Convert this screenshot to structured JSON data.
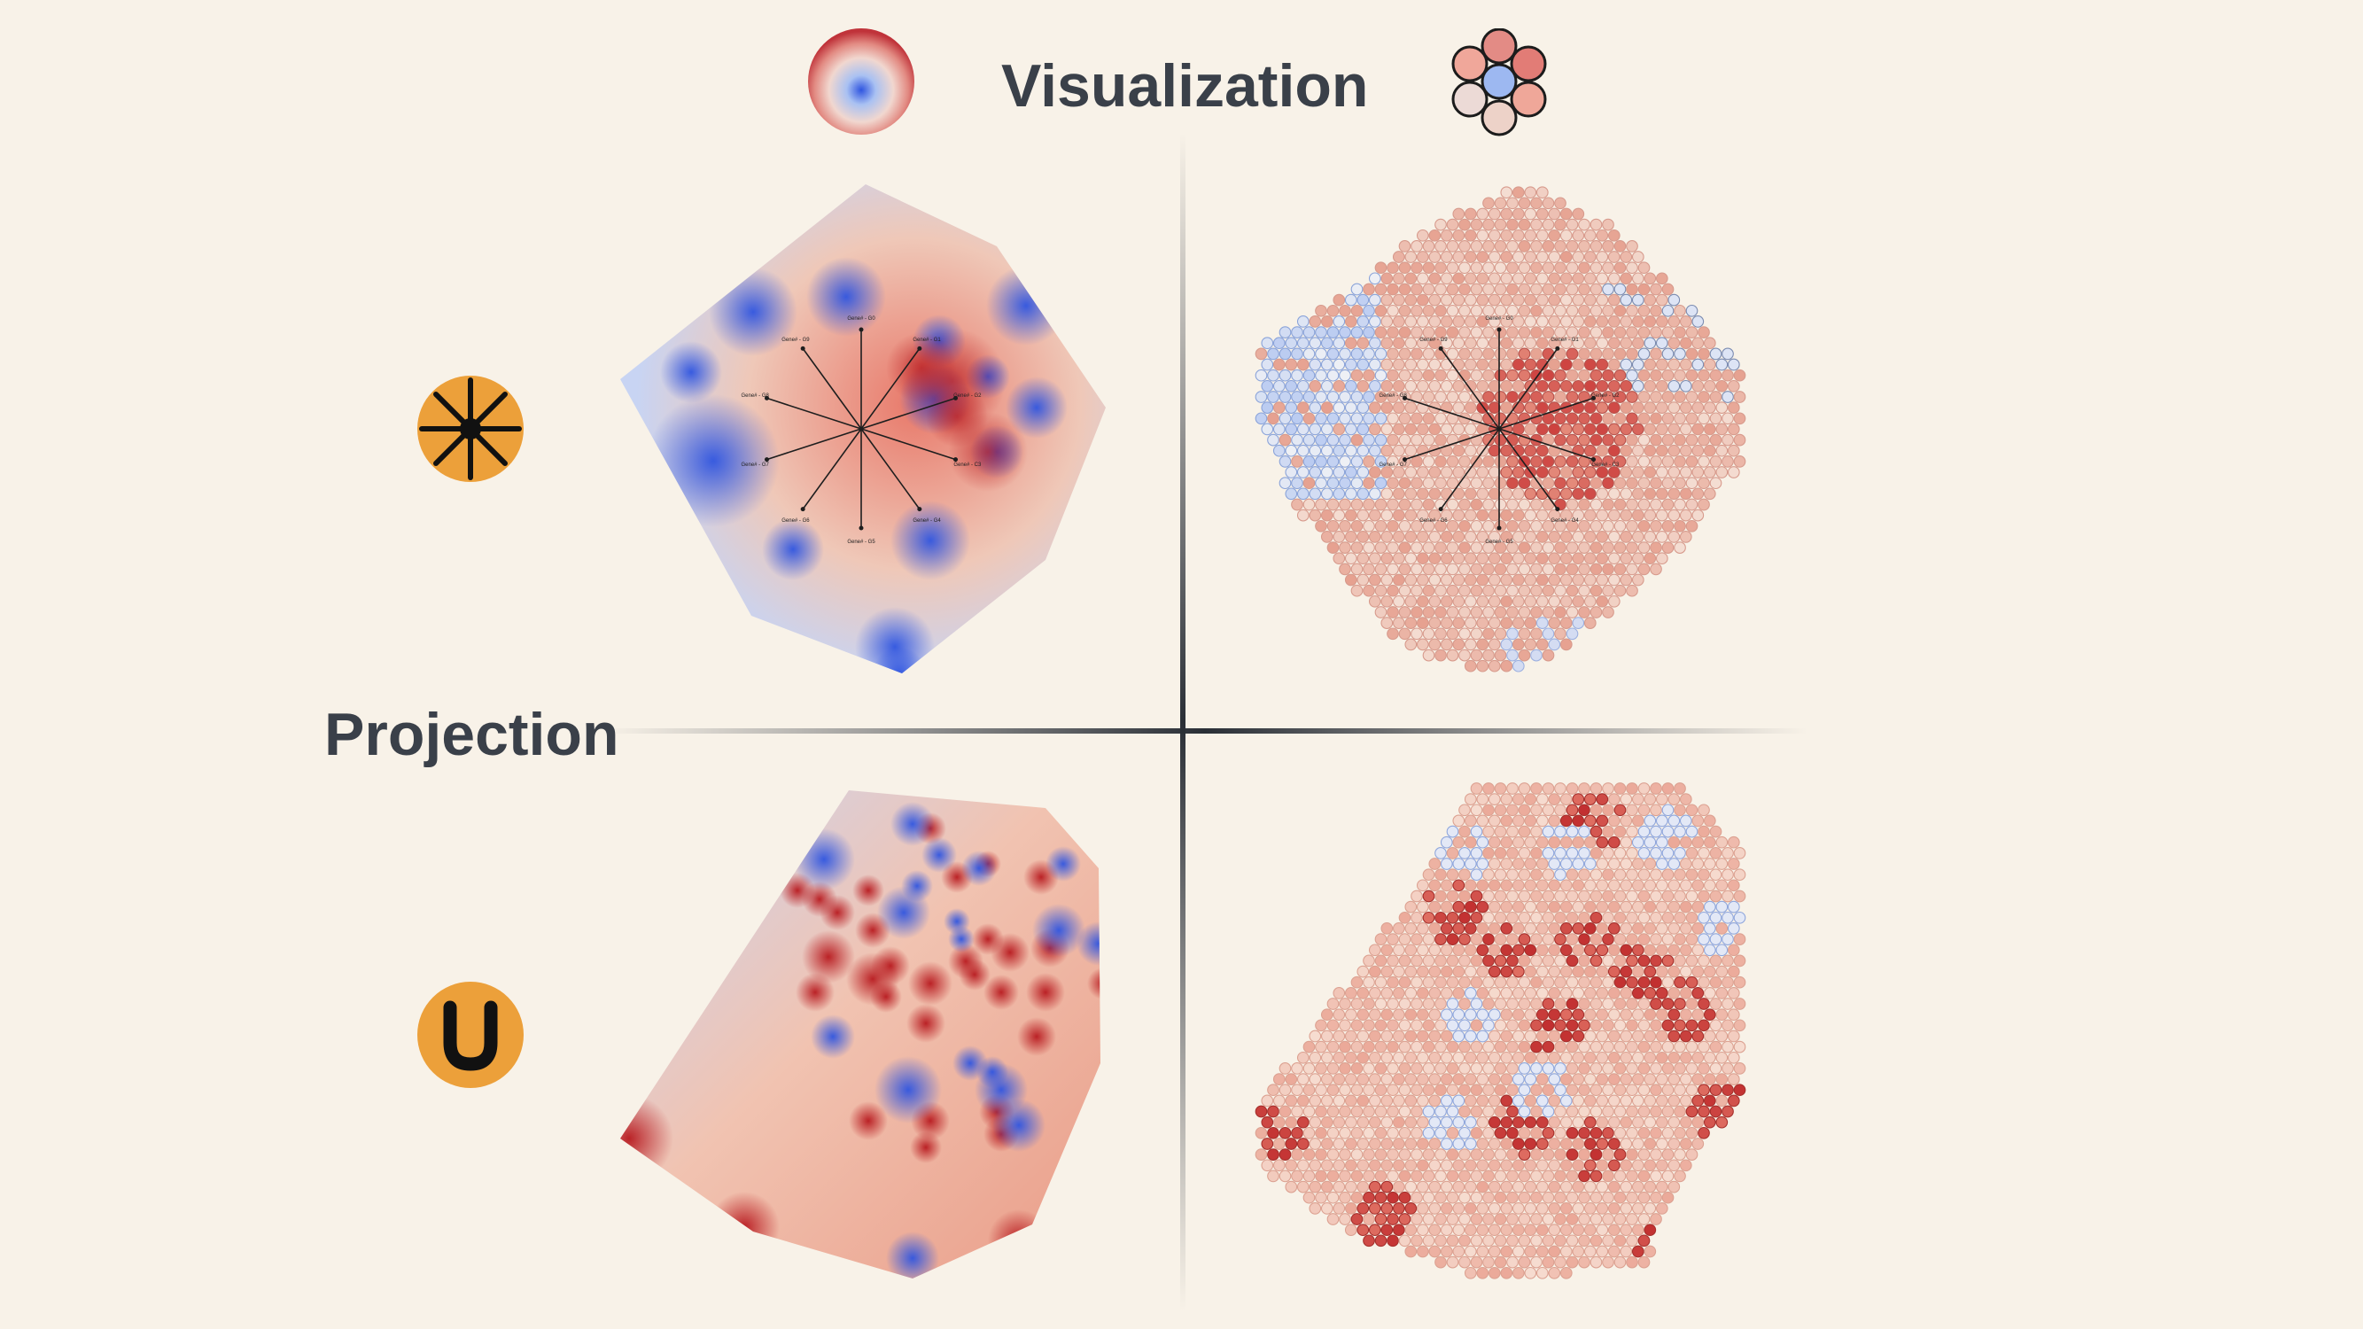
{
  "header": {
    "visualization_title": "Visualization"
  },
  "side": {
    "projection_title": "Projection"
  },
  "icons": {
    "interpolation": "radial-gradient-circle-icon",
    "hexbin": "hexagon-cluster-icon",
    "radviz": "radial-axes-icon",
    "umap": "u-letter-icon"
  },
  "colors": {
    "background": "#f8f2e8",
    "title": "#3a4049",
    "accent_orange": "#eca03a",
    "low_blue": "#2f55e0",
    "high_red": "#b81a1f",
    "neutral": "#e9e2dc"
  },
  "radviz_axes": [
    "Gene# - G0",
    "Gene# - G1",
    "Gene# - G2",
    "Gene# - C3",
    "Gene# - G4",
    "Gene# - G5",
    "Gene# - G6",
    "Gene# - G7",
    "Gene# - G8",
    "Gene# - G9"
  ]
}
